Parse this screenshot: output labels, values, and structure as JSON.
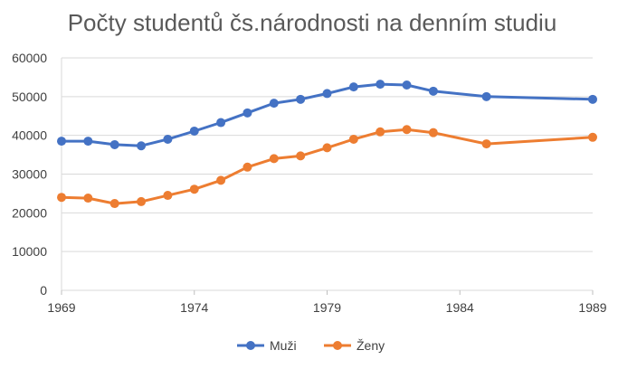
{
  "chart_data": {
    "type": "line",
    "title": "Počty studentů čs.národnosti na denním studiu",
    "xlabel": "",
    "ylabel": "",
    "xlim": [
      1969,
      1989
    ],
    "ylim": [
      0,
      60000
    ],
    "x_ticks": [
      "1969",
      "1974",
      "1979",
      "1984",
      "1989"
    ],
    "y_ticks": [
      "0",
      "10000",
      "20000",
      "30000",
      "40000",
      "50000",
      "60000"
    ],
    "grid": true,
    "legend_position": "bottom",
    "series": [
      {
        "name": "Muži",
        "color": "#4472C4",
        "points": [
          {
            "x": 1969,
            "y": 38500
          },
          {
            "x": 1970,
            "y": 38500
          },
          {
            "x": 1971,
            "y": 37600
          },
          {
            "x": 1972,
            "y": 37300
          },
          {
            "x": 1973,
            "y": 39000
          },
          {
            "x": 1974,
            "y": 41100
          },
          {
            "x": 1975,
            "y": 43300
          },
          {
            "x": 1976,
            "y": 45800
          },
          {
            "x": 1977,
            "y": 48300
          },
          {
            "x": 1978,
            "y": 49300
          },
          {
            "x": 1979,
            "y": 50800
          },
          {
            "x": 1980,
            "y": 52500
          },
          {
            "x": 1981,
            "y": 53200
          },
          {
            "x": 1982,
            "y": 53000
          },
          {
            "x": 1983,
            "y": 51400
          },
          {
            "x": 1985,
            "y": 50000
          },
          {
            "x": 1989,
            "y": 49300
          }
        ]
      },
      {
        "name": "Ženy",
        "color": "#ED7D31",
        "points": [
          {
            "x": 1969,
            "y": 24000
          },
          {
            "x": 1970,
            "y": 23800
          },
          {
            "x": 1971,
            "y": 22400
          },
          {
            "x": 1972,
            "y": 22900
          },
          {
            "x": 1973,
            "y": 24500
          },
          {
            "x": 1974,
            "y": 26100
          },
          {
            "x": 1975,
            "y": 28400
          },
          {
            "x": 1976,
            "y": 31800
          },
          {
            "x": 1977,
            "y": 34000
          },
          {
            "x": 1978,
            "y": 34700
          },
          {
            "x": 1979,
            "y": 36800
          },
          {
            "x": 1980,
            "y": 39000
          },
          {
            "x": 1981,
            "y": 40900
          },
          {
            "x": 1982,
            "y": 41500
          },
          {
            "x": 1983,
            "y": 40700
          },
          {
            "x": 1985,
            "y": 37800
          },
          {
            "x": 1989,
            "y": 39500
          }
        ]
      }
    ]
  }
}
